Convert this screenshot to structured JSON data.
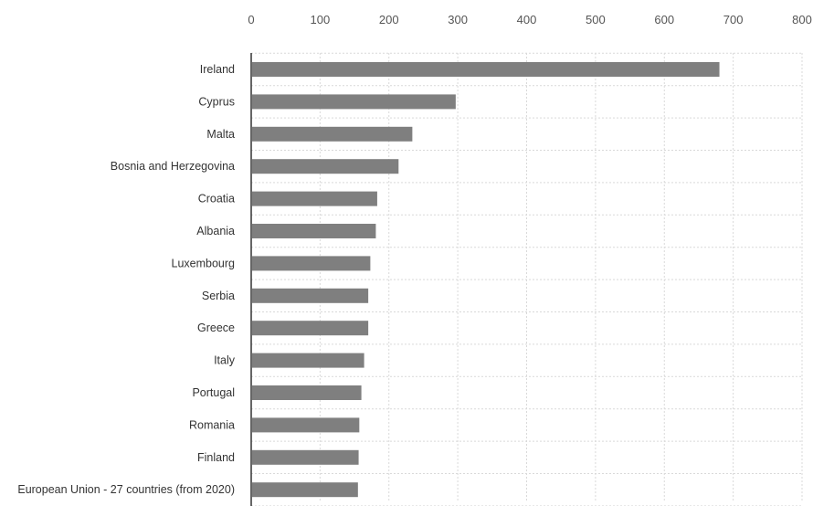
{
  "chart_data": {
    "type": "bar",
    "orientation": "horizontal",
    "title": "",
    "xlabel": "",
    "ylabel": "",
    "xlim": [
      0,
      800
    ],
    "x_ticks": [
      0,
      100,
      200,
      300,
      400,
      500,
      600,
      700,
      800
    ],
    "x_axis_position": "top",
    "grid": true,
    "categories": [
      "Ireland",
      "Cyprus",
      "Malta",
      "Bosnia and Herzegovina",
      "Croatia",
      "Albania",
      "Luxembourg",
      "Serbia",
      "Greece",
      "Italy",
      "Portugal",
      "Romania",
      "Finland",
      "European Union - 27 countries (from 2020)"
    ],
    "values": [
      680,
      297,
      234,
      214,
      183,
      181,
      173,
      170,
      170,
      164,
      160,
      157,
      156,
      155
    ],
    "bar_color": "#7f7f7f",
    "grid_color": "#d9d9d9",
    "axis_color": "#333333"
  }
}
